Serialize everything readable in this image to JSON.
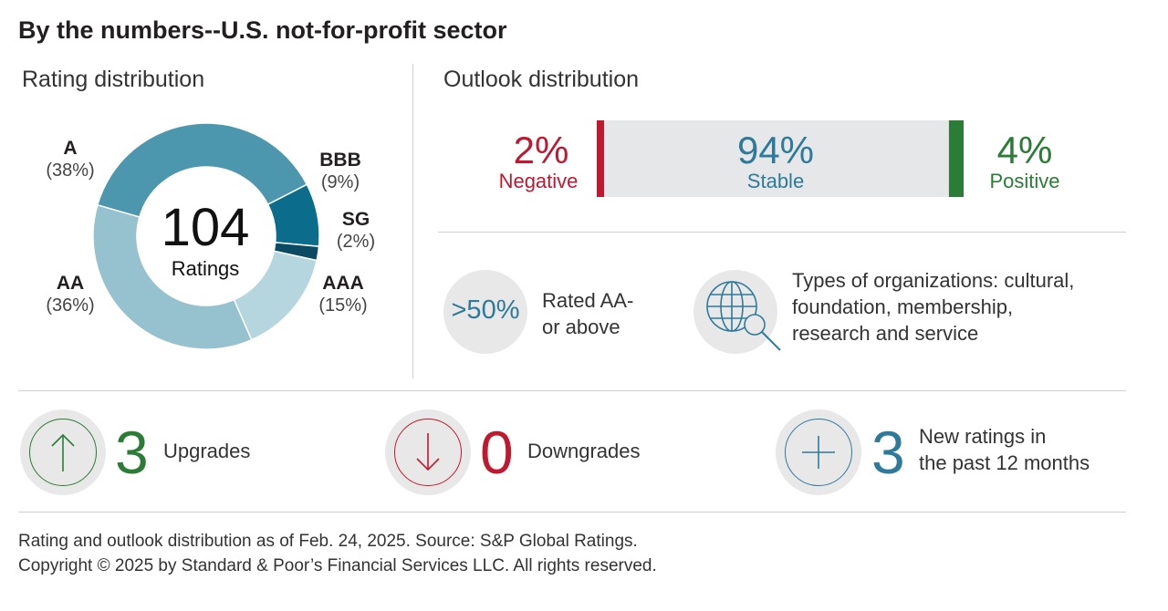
{
  "title": "By the numbers--U.S. not-for-profit sector",
  "rating_section": {
    "title": "Rating distribution",
    "center_value": "104",
    "center_label": "Ratings",
    "labels": {
      "a": {
        "name": "A",
        "pct": "(38%)"
      },
      "bbb": {
        "name": "BBB",
        "pct": "(9%)"
      },
      "sg": {
        "name": "SG",
        "pct": "(2%)"
      },
      "aaa": {
        "name": "AAA",
        "pct": "(15%)"
      },
      "aa": {
        "name": "AA",
        "pct": "(36%)"
      }
    }
  },
  "outlook_section": {
    "title": "Outlook distribution",
    "negative": {
      "pct": "2%",
      "label": "Negative"
    },
    "stable": {
      "pct": "94%",
      "label": "Stable"
    },
    "positive": {
      "pct": "4%",
      "label": "Positive"
    },
    "highlight": {
      "value": ">50%",
      "label_line1": "Rated AA-",
      "label_line2": "or above"
    },
    "types": {
      "line1": "Types of organizations: cultural,",
      "line2": "foundation, membership,",
      "line3": "research and service"
    }
  },
  "stats": {
    "upgrades": {
      "value": "3",
      "label": "Upgrades"
    },
    "downgrades": {
      "value": "0",
      "label": "Downgrades"
    },
    "new_ratings": {
      "value": "3",
      "label_line1": "New ratings in",
      "label_line2": "the past 12 months"
    }
  },
  "footer": {
    "line1": "Rating and outlook distribution as of Feb. 24, 2025. Source: S&P Global Ratings.",
    "line2": "Copyright © 2025 by Standard & Poor’s Financial Services LLC. All rights reserved."
  },
  "colors": {
    "A": "#4d97ae",
    "BBB": "#0b6c8c",
    "SG": "#0a4a62",
    "AAA": "#b5d6de",
    "AA": "#96c1ce",
    "negative": "#c0182f",
    "stable": "#2e7a9b",
    "positive": "#2a7c36",
    "bar_fill": "#e6e7e8"
  },
  "chart_data": [
    {
      "type": "pie",
      "title": "Rating distribution",
      "categories": [
        "A",
        "BBB",
        "SG",
        "AAA",
        "AA"
      ],
      "values": [
        38,
        9,
        2,
        15,
        36
      ],
      "total": 104
    },
    {
      "type": "bar",
      "title": "Outlook distribution",
      "categories": [
        "Negative",
        "Stable",
        "Positive"
      ],
      "values": [
        2,
        94,
        4
      ]
    }
  ]
}
